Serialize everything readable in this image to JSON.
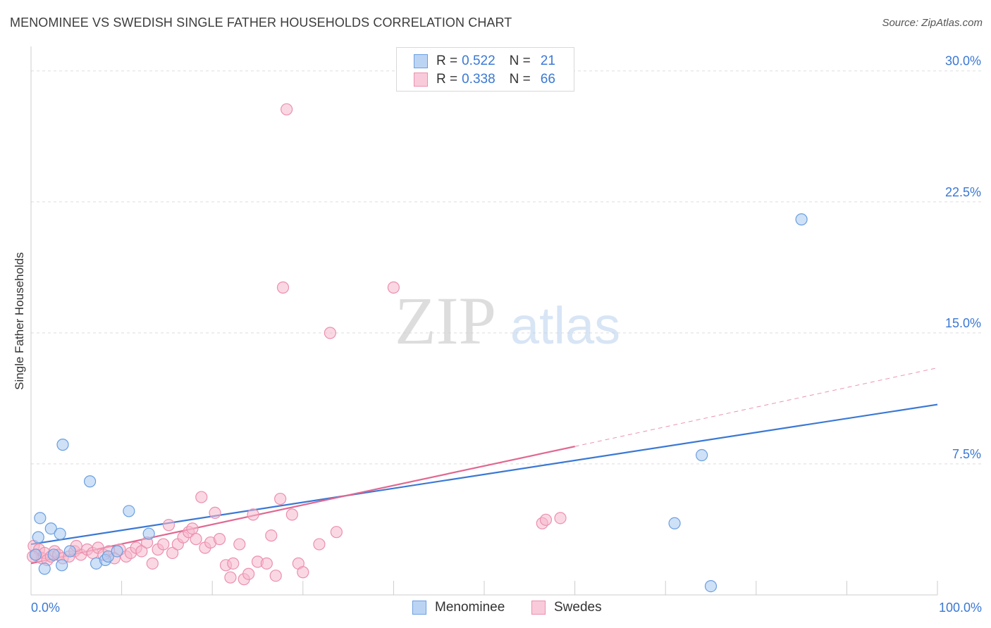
{
  "title": "MENOMINEE VS SWEDISH SINGLE FATHER HOUSEHOLDS CORRELATION CHART",
  "source": "Source: ZipAtlas.com",
  "watermark": {
    "zip": "ZIP",
    "atlas": "atlas"
  },
  "legend": {
    "r_label": "R =",
    "n_label": "N =",
    "rows": [
      {
        "r": "0.522",
        "n": "21"
      },
      {
        "r": "0.338",
        "n": "66"
      }
    ]
  },
  "colors": {
    "menominee_fill": "#a8c8f0",
    "menominee_stroke": "#6a9fe0",
    "menominee_line": "#3a78d4",
    "swedes_fill": "#f6b8cc",
    "swedes_stroke": "#ec8fae",
    "swedes_line": "#e06890",
    "tick_label": "#3a78d4",
    "grid": "#dddddd"
  },
  "chart_data": {
    "type": "scatter",
    "title": "MENOMINEE VS SWEDISH SINGLE FATHER HOUSEHOLDS CORRELATION CHART",
    "xlabel": "",
    "ylabel": "Single Father Households",
    "xlim": [
      0,
      100
    ],
    "ylim": [
      0,
      31.4
    ],
    "x_tick_labels": [
      "0.0%",
      "100.0%"
    ],
    "y_ticks": [
      7.5,
      15.0,
      22.5,
      30.0
    ],
    "y_tick_labels": [
      "7.5%",
      "15.0%",
      "22.5%",
      "30.0%"
    ],
    "grid": true,
    "series": [
      {
        "name": "Menominee",
        "r": 0.522,
        "n": 21,
        "points": [
          [
            0.5,
            2.3
          ],
          [
            0.8,
            3.3
          ],
          [
            1.0,
            4.4
          ],
          [
            1.5,
            1.5
          ],
          [
            2.2,
            3.8
          ],
          [
            2.5,
            2.3
          ],
          [
            3.2,
            3.5
          ],
          [
            3.4,
            1.7
          ],
          [
            3.5,
            8.6
          ],
          [
            4.3,
            2.5
          ],
          [
            6.5,
            6.5
          ],
          [
            7.2,
            1.8
          ],
          [
            8.2,
            2.0
          ],
          [
            8.5,
            2.2
          ],
          [
            9.5,
            2.5
          ],
          [
            10.8,
            4.8
          ],
          [
            13.0,
            3.5
          ],
          [
            71.0,
            4.1
          ],
          [
            74.0,
            8.0
          ],
          [
            75.0,
            0.5
          ],
          [
            85.0,
            21.5
          ]
        ],
        "trend": {
          "x0": 0,
          "y0": 2.9,
          "x1": 100,
          "y1": 10.9
        }
      },
      {
        "name": "Swedes",
        "r": 0.338,
        "n": 66,
        "points": [
          [
            0.3,
            2.8
          ],
          [
            0.6,
            2.3
          ],
          [
            0.9,
            2.6
          ],
          [
            1.2,
            2.1
          ],
          [
            1.5,
            2.4
          ],
          [
            1.8,
            2.0
          ],
          [
            2.2,
            2.2
          ],
          [
            2.6,
            2.5
          ],
          [
            3.0,
            2.3
          ],
          [
            3.5,
            2.1
          ],
          [
            4.2,
            2.2
          ],
          [
            4.8,
            2.5
          ],
          [
            5.5,
            2.3
          ],
          [
            6.2,
            2.6
          ],
          [
            6.8,
            2.4
          ],
          [
            7.4,
            2.7
          ],
          [
            8.0,
            2.3
          ],
          [
            8.6,
            2.5
          ],
          [
            9.2,
            2.1
          ],
          [
            9.8,
            2.6
          ],
          [
            10.5,
            2.2
          ],
          [
            11.0,
            2.4
          ],
          [
            11.6,
            2.7
          ],
          [
            12.2,
            2.5
          ],
          [
            12.8,
            3.0
          ],
          [
            13.4,
            1.8
          ],
          [
            14.0,
            2.6
          ],
          [
            14.6,
            2.9
          ],
          [
            15.2,
            4.0
          ],
          [
            15.6,
            2.4
          ],
          [
            16.2,
            2.9
          ],
          [
            16.8,
            3.3
          ],
          [
            17.4,
            3.6
          ],
          [
            17.8,
            3.8
          ],
          [
            18.2,
            3.2
          ],
          [
            18.8,
            5.6
          ],
          [
            19.2,
            2.7
          ],
          [
            19.8,
            3.0
          ],
          [
            20.3,
            4.7
          ],
          [
            20.8,
            3.2
          ],
          [
            21.5,
            1.7
          ],
          [
            22.0,
            1.0
          ],
          [
            22.3,
            1.8
          ],
          [
            23.0,
            2.9
          ],
          [
            23.5,
            0.9
          ],
          [
            24.0,
            1.2
          ],
          [
            24.5,
            4.6
          ],
          [
            25.0,
            1.9
          ],
          [
            26.0,
            1.8
          ],
          [
            26.5,
            3.4
          ],
          [
            27.0,
            1.1
          ],
          [
            27.5,
            5.5
          ],
          [
            27.8,
            17.6
          ],
          [
            28.2,
            27.8
          ],
          [
            28.8,
            4.6
          ],
          [
            29.5,
            1.8
          ],
          [
            30.0,
            1.3
          ],
          [
            31.8,
            2.9
          ],
          [
            33.0,
            15.0
          ],
          [
            33.7,
            3.6
          ],
          [
            40.0,
            17.6
          ],
          [
            56.4,
            4.1
          ],
          [
            56.8,
            4.3
          ],
          [
            58.4,
            4.4
          ],
          [
            0.2,
            2.2
          ],
          [
            5.0,
            2.8
          ]
        ],
        "trend": {
          "x0": 0,
          "y0": 1.8,
          "x1": 60,
          "y1": 8.5,
          "dash_x1": 100,
          "dash_y1": 13.0
        }
      }
    ]
  }
}
